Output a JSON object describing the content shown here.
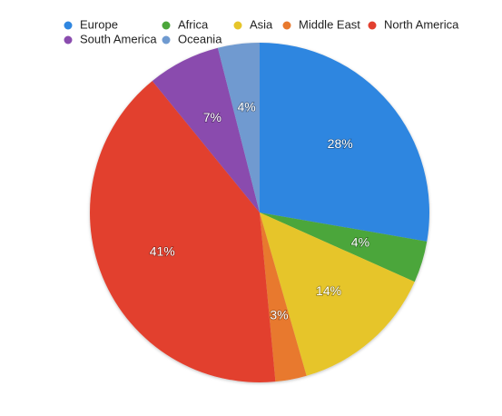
{
  "chart_data": {
    "type": "pie",
    "categories": [
      "Europe",
      "Africa",
      "Asia",
      "Middle East",
      "North America",
      "South America",
      "Oceania"
    ],
    "values": [
      28,
      4,
      14,
      3,
      41,
      7,
      4
    ],
    "value_labels": [
      "28%",
      "4%",
      "14%",
      "3%",
      "41%",
      "7%",
      "4%"
    ],
    "colors": [
      "#2f86e0",
      "#4ba63a",
      "#e6c52a",
      "#e8792e",
      "#e2402f",
      "#8a4cae",
      "#6f9ad0"
    ],
    "legend": "top"
  }
}
